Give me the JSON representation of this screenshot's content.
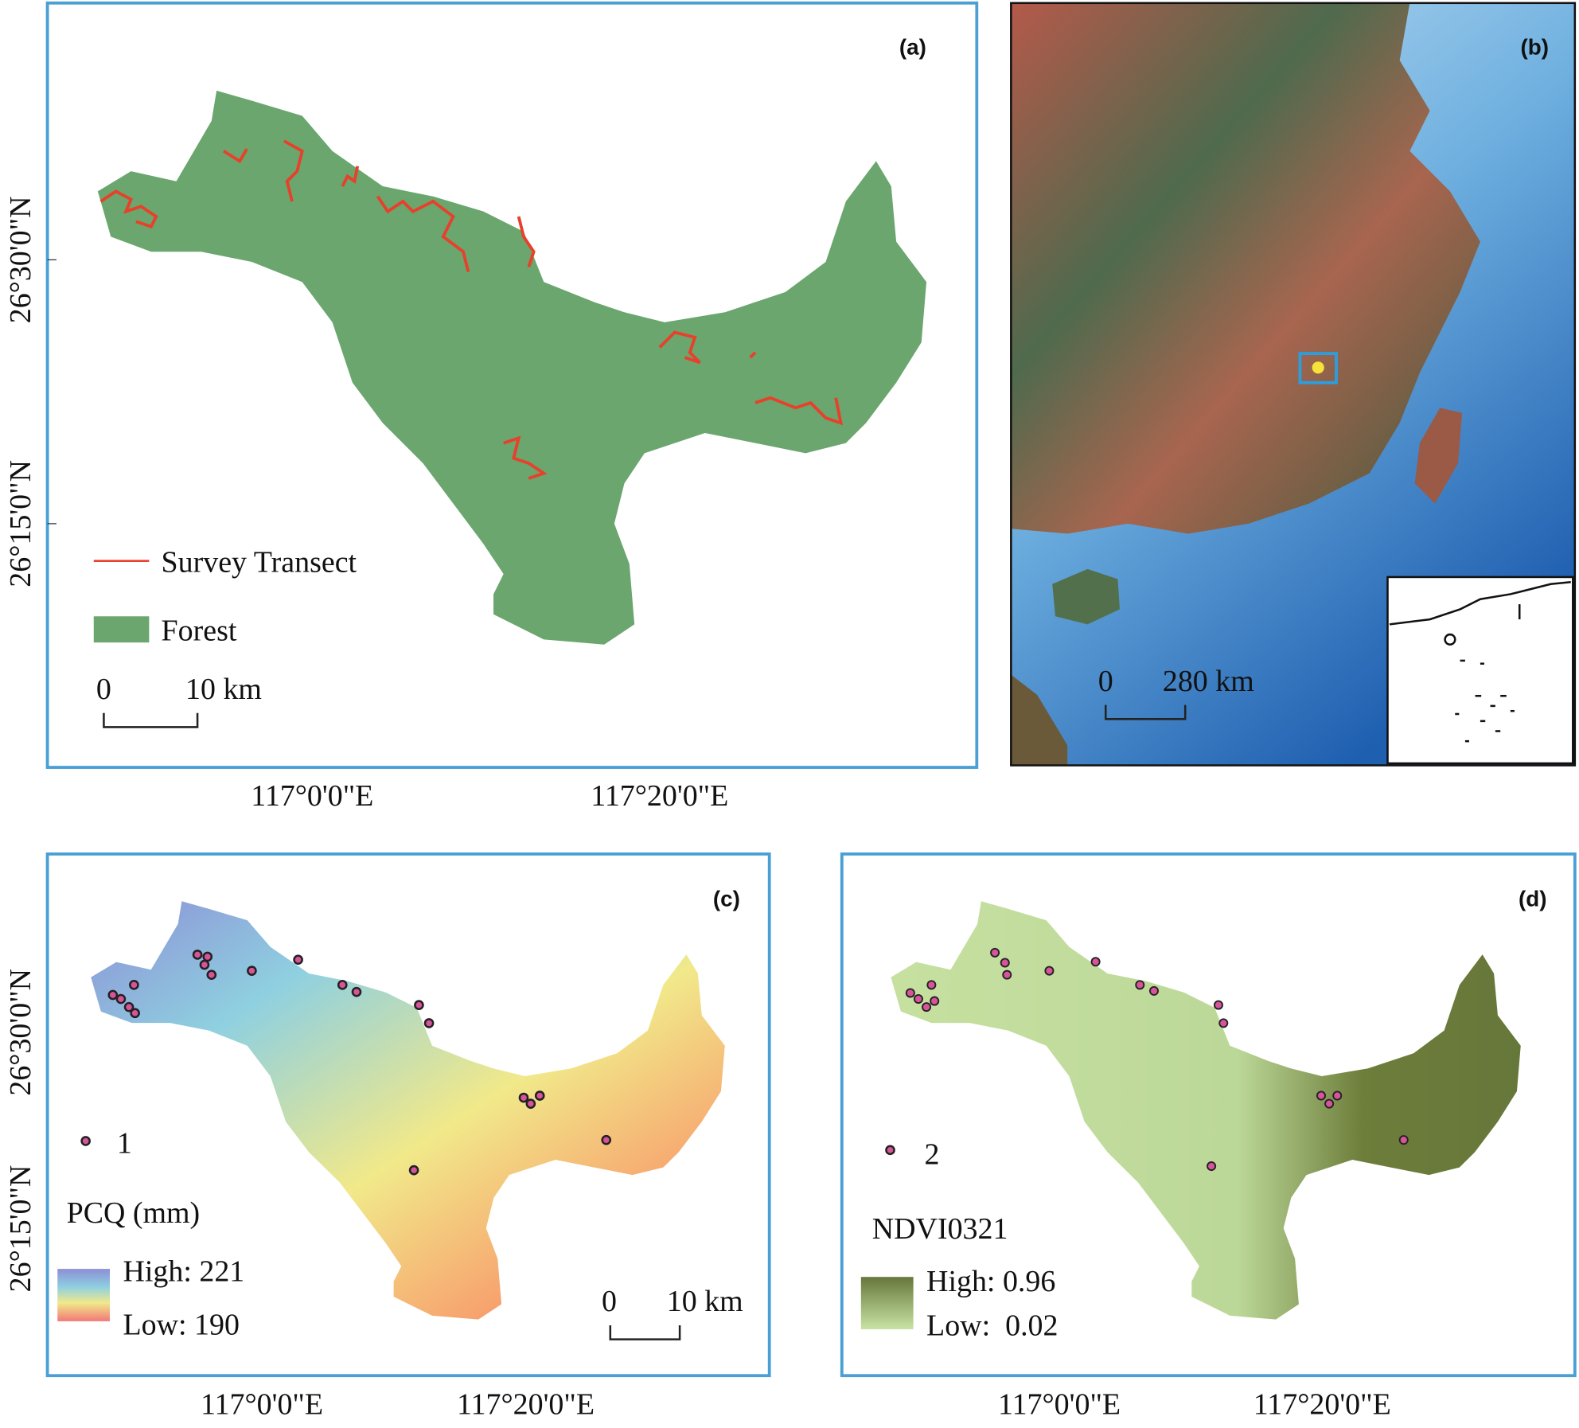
{
  "panels": [
    {
      "label": "(a)",
      "legend": [
        "Survey Transect",
        "Forest"
      ],
      "scale_bar": [
        "0",
        "10 km"
      ],
      "y_labels": [
        "26°30'0\"N",
        "26°15'0\"N"
      ],
      "x_labels": [
        "117°0'0\"E",
        "117°20'0\"E"
      ]
    },
    {
      "label": "(b)",
      "scale_bar": [
        "0",
        "280 km"
      ]
    },
    {
      "label": "(c)",
      "points_legend": "1",
      "legend_title": "PCQ (mm)",
      "high": "High: 221",
      "low": "Low: 190",
      "scale_bar": [
        "0",
        "10 km"
      ],
      "y_labels": [
        "26°30'0\"N",
        "26°15'0\"N"
      ],
      "x_labels": [
        "117°0'0\"E",
        "117°20'0\"E"
      ]
    },
    {
      "label": "(d)",
      "points_legend": "2",
      "legend_title": "NDVI0321",
      "high": "High: 0.96",
      "low": "Low:  0.02",
      "x_labels": [
        "117°0'0\"E",
        "117°20'0\"E"
      ]
    }
  ]
}
